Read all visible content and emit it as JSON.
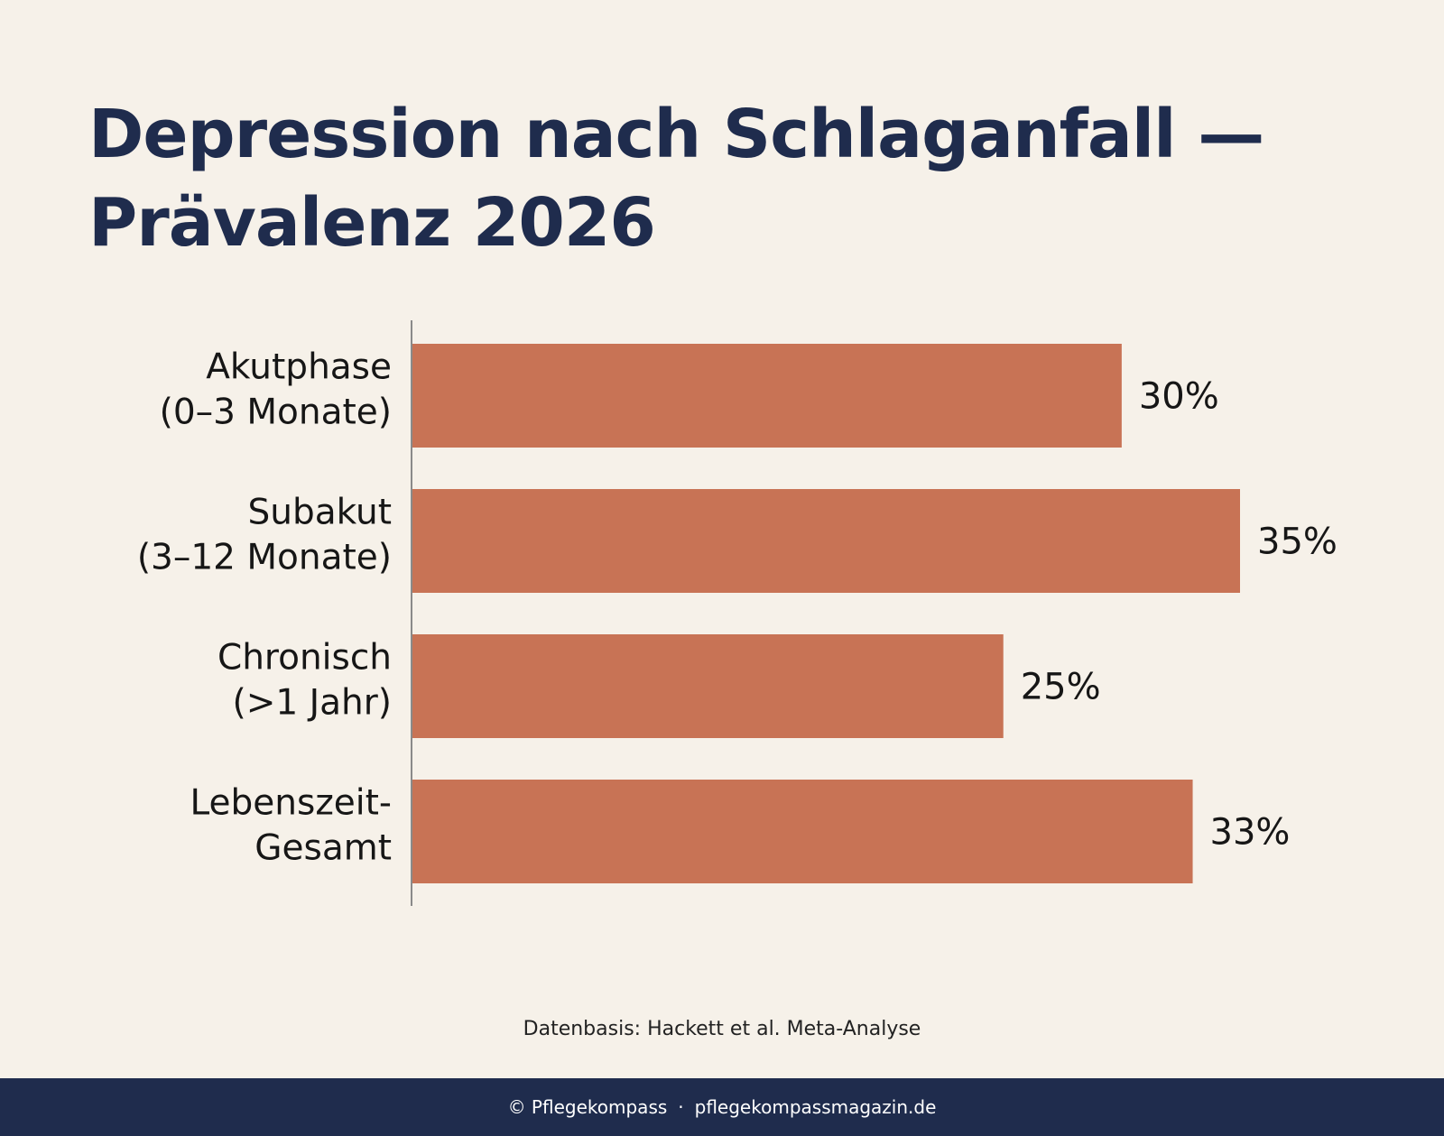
{
  "chart_data": {
    "type": "bar",
    "orientation": "horizontal",
    "title": "Depression nach Schlaganfall — Prävalenz 2026",
    "title_lines": [
      "Depression nach Schlaganfall —",
      "Prävalenz 2026"
    ],
    "categories": [
      [
        "Akutphase",
        "(0–3 Monate)"
      ],
      [
        "Subakut",
        "(3–12 Monate)"
      ],
      [
        "Chronisch",
        "(>1 Jahr)"
      ],
      [
        "Lebenszeit-",
        "Gesamt"
      ]
    ],
    "values": [
      30,
      35,
      25,
      33
    ],
    "value_labels": [
      "30%",
      "35%",
      "25%",
      "33%"
    ],
    "unit": "%",
    "xlim": [
      0,
      35
    ],
    "bar_color": "#c87355",
    "grid": false
  },
  "source": "Datenbasis: Hackett et al. Meta-Analyse",
  "footer": {
    "copyright": "© Pflegekompass",
    "separator": "·",
    "website": "pflegekompassmagazin.de"
  },
  "colors": {
    "background": "#f6f1e9",
    "title": "#1f2c4d",
    "footer_bg": "#1f2c4d"
  }
}
